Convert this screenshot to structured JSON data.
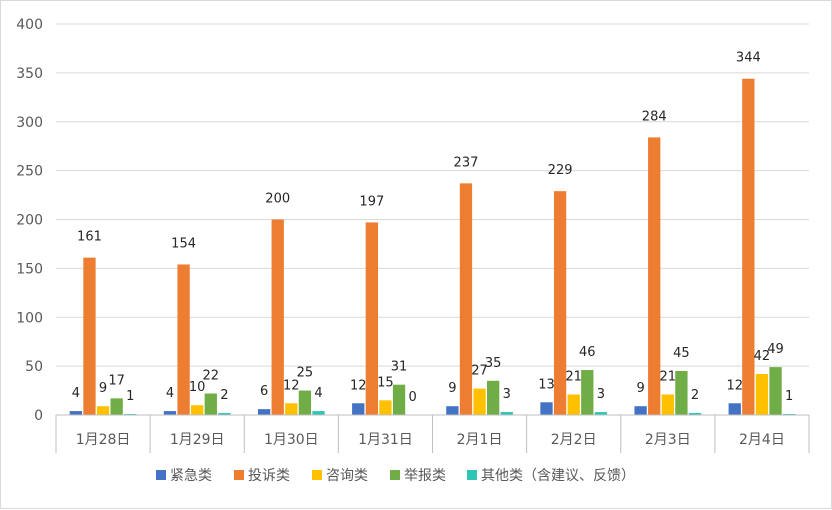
{
  "chart_data": {
    "type": "bar",
    "title": "",
    "xlabel": "",
    "ylabel": "",
    "ylim": [
      0,
      400
    ],
    "yticks": [
      0,
      50,
      100,
      150,
      200,
      250,
      300,
      350,
      400
    ],
    "grid": true,
    "legend_position": "bottom",
    "categories": [
      "1月28日",
      "1月29日",
      "1月30日",
      "1月31日",
      "2月1日",
      "2月2日",
      "2月3日",
      "2月4日"
    ],
    "series": [
      {
        "name": "紧急类",
        "color": "#4472C4",
        "values": [
          4,
          4,
          6,
          12,
          9,
          13,
          9,
          12
        ]
      },
      {
        "name": "投诉类",
        "color": "#ED7D31",
        "values": [
          161,
          154,
          200,
          197,
          237,
          229,
          284,
          344
        ]
      },
      {
        "name": "咨询类",
        "color": "#FFC000",
        "values": [
          9,
          10,
          12,
          15,
          27,
          21,
          21,
          42
        ]
      },
      {
        "name": "举报类",
        "color": "#70AD47",
        "values": [
          17,
          22,
          25,
          31,
          35,
          46,
          45,
          49
        ]
      },
      {
        "name": "其他类（含建议、反馈）",
        "color": "#2EC4B6",
        "values": [
          1,
          2,
          4,
          0,
          3,
          3,
          2,
          1
        ]
      }
    ]
  }
}
